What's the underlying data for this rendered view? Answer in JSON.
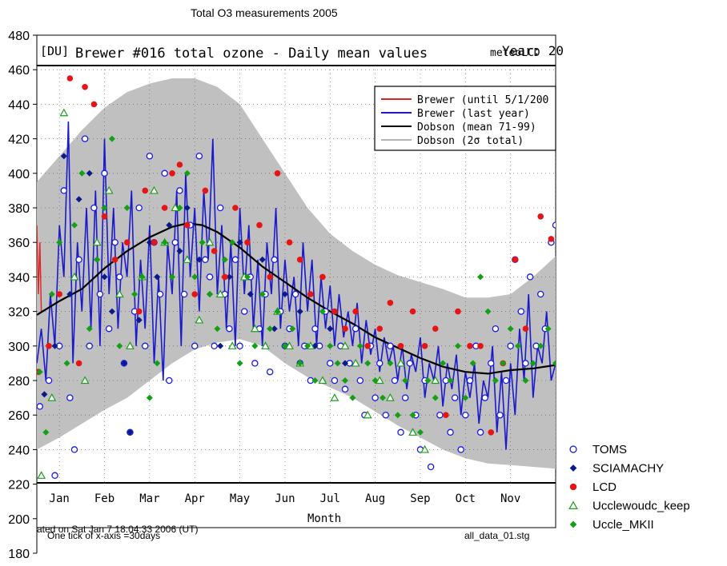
{
  "chart_data": {
    "type": "scatter",
    "title": "Total O3 measurements 2005",
    "y_axis": {
      "ticks": [
        "480",
        "460",
        "440",
        "420",
        "400",
        "380",
        "360",
        "340",
        "320",
        "300",
        "280",
        "260",
        "240",
        "220",
        "200",
        "180"
      ],
      "ylim": [
        180,
        480
      ]
    },
    "inner_plot": {
      "unit_label": "[DU]",
      "title": "Brewer #016 total ozone - Daily mean values",
      "year_label": "Year: 20",
      "overlap_label": "meteoLCD",
      "xlabel": "Month",
      "months": [
        "Jan",
        "Feb",
        "Mar",
        "Apr",
        "May",
        "Jun",
        "Jul",
        "Aug",
        "Sep",
        "Oct",
        "Nov"
      ],
      "timestamp_text": "ated on Sat Jan  7 18:04:33 2006 (UT)",
      "legend": [
        {
          "label": "Brewer (until 5/1/200",
          "color": "#dd2222"
        },
        {
          "label": "Brewer (last year)",
          "color": "#1a1acc"
        },
        {
          "label": "Dobson (mean 71-99)",
          "color": "#000000"
        },
        {
          "label": "Dobson (2σ total)",
          "color": "#b4b4b4"
        }
      ]
    },
    "footnote_left": "One tick of x-axis =30days",
    "footnote_right": "all_data_01.stg",
    "legend": [
      {
        "name": "TOMS",
        "marker": "open-circle",
        "color": "#1a1ae6"
      },
      {
        "name": "SCIAMACHY",
        "marker": "diamond",
        "color": "#0a1a8c"
      },
      {
        "name": "LCD",
        "marker": "filled-circle",
        "color": "#e61414"
      },
      {
        "name": "Ucclewoudc_keep",
        "marker": "open-triangle",
        "color": "#1aa01a"
      },
      {
        "name": "Uccle_MKII",
        "marker": "diamond",
        "color": "#14a014"
      }
    ],
    "dobson_mean": {
      "x": [
        0,
        15,
        30,
        45,
        60,
        75,
        90,
        100,
        110,
        120,
        135,
        150,
        165,
        180,
        195,
        210,
        225,
        240,
        255,
        270,
        285,
        300,
        315,
        330,
        345
      ],
      "y": [
        318,
        326,
        333,
        345,
        355,
        363,
        369,
        371,
        370,
        366,
        357,
        346,
        337,
        328,
        320,
        313,
        305,
        299,
        293,
        288,
        285,
        284,
        286,
        287,
        289
      ]
    },
    "dobson_band_upper": {
      "x": [
        0,
        15,
        30,
        45,
        60,
        75,
        90,
        105,
        120,
        135,
        150,
        165,
        180,
        195,
        210,
        225,
        240,
        255,
        270,
        285,
        300,
        315,
        330,
        345
      ],
      "y": [
        395,
        410,
        425,
        438,
        447,
        452,
        455,
        455,
        450,
        440,
        420,
        400,
        380,
        365,
        355,
        347,
        341,
        337,
        333,
        328,
        328,
        330,
        340,
        352
      ]
    },
    "dobson_band_lower": {
      "x": [
        0,
        15,
        30,
        45,
        60,
        75,
        90,
        105,
        120,
        135,
        150,
        165,
        180,
        195,
        210,
        225,
        240,
        255,
        270,
        285,
        300,
        315,
        330,
        345
      ],
      "y": [
        240,
        247,
        255,
        263,
        270,
        280,
        290,
        298,
        302,
        304,
        300,
        290,
        282,
        276,
        270,
        262,
        254,
        247,
        240,
        235,
        232,
        231,
        230,
        229
      ]
    },
    "brewer_last_year": {
      "x": [
        0,
        3,
        6,
        9,
        12,
        15,
        18,
        21,
        24,
        27,
        30,
        33,
        36,
        39,
        42,
        45,
        48,
        51,
        54,
        57,
        60,
        63,
        66,
        69,
        72,
        75,
        78,
        81,
        84,
        87,
        90,
        93,
        96,
        99,
        102,
        105,
        108,
        111,
        114,
        117,
        120,
        123,
        126,
        129,
        132,
        135,
        138,
        141,
        144,
        147,
        150,
        153,
        156,
        159,
        162,
        165,
        168,
        171,
        174,
        177,
        180,
        183,
        186,
        189,
        192,
        195,
        198,
        201,
        204,
        207,
        210,
        213,
        216,
        219,
        222,
        225,
        228,
        231,
        234,
        237,
        240,
        243,
        246,
        249,
        252,
        255,
        258,
        261,
        264,
        267,
        270,
        273,
        276,
        279,
        282,
        285,
        288,
        291,
        294,
        297,
        300,
        303,
        306,
        309,
        312,
        315,
        318,
        321,
        324,
        327,
        330,
        333,
        336,
        339,
        342,
        345
      ],
      "y": [
        290,
        310,
        280,
        330,
        300,
        370,
        340,
        430,
        290,
        360,
        320,
        380,
        310,
        390,
        300,
        420,
        330,
        380,
        310,
        360,
        340,
        390,
        300,
        350,
        310,
        370,
        290,
        340,
        280,
        360,
        330,
        390,
        300,
        400,
        340,
        380,
        320,
        390,
        350,
        420,
        330,
        370,
        310,
        360,
        300,
        380,
        330,
        370,
        310,
        350,
        300,
        360,
        330,
        380,
        310,
        350,
        320,
        340,
        300,
        360,
        320,
        350,
        300,
        340,
        310,
        335,
        300,
        330,
        305,
        320,
        300,
        325,
        290,
        315,
        295,
        310,
        285,
        305,
        290,
        300,
        280,
        300,
        275,
        295,
        285,
        305,
        270,
        290,
        280,
        300,
        265,
        290,
        275,
        295,
        260,
        285,
        270,
        290,
        255,
        280,
        270,
        300,
        250,
        285,
        240,
        290,
        260,
        310,
        280,
        330,
        270,
        300,
        290,
        320,
        280,
        290
      ]
    },
    "brewer_old": {
      "x": [
        0,
        1,
        2,
        3
      ],
      "y": [
        370,
        330,
        360,
        320
      ]
    },
    "series": [
      {
        "name": "TOMS",
        "x": [
          2,
          5,
          8,
          12,
          15,
          18,
          22,
          25,
          28,
          32,
          35,
          38,
          42,
          45,
          48,
          52,
          55,
          58,
          62,
          65,
          68,
          72,
          75,
          78,
          82,
          85,
          88,
          92,
          95,
          98,
          102,
          105,
          108,
          112,
          115,
          118,
          122,
          125,
          128,
          132,
          135,
          138,
          142,
          145,
          148,
          152,
          155,
          158,
          162,
          165,
          168,
          172,
          175,
          178,
          182,
          185,
          188,
          192,
          195,
          198,
          202,
          205,
          208,
          212,
          215,
          218,
          222,
          225,
          228,
          232,
          235,
          238,
          242,
          245,
          248,
          252,
          255,
          258,
          262,
          265,
          268,
          272,
          275,
          278,
          282,
          285,
          288,
          292,
          295,
          298,
          302,
          305,
          308,
          312,
          315,
          318,
          322,
          325,
          328,
          332,
          335,
          338,
          342,
          345
        ],
        "y": [
          265,
          208,
          280,
          225,
          300,
          390,
          270,
          240,
          350,
          420,
          300,
          380,
          330,
          400,
          310,
          360,
          340,
          290,
          250,
          320,
          380,
          300,
          410,
          360,
          330,
          400,
          280,
          360,
          390,
          330,
          370,
          300,
          410,
          350,
          340,
          300,
          380,
          330,
          310,
          350,
          300,
          320,
          340,
          290,
          310,
          330,
          285,
          350,
          320,
          300,
          310,
          330,
          290,
          300,
          280,
          310,
          300,
          320,
          290,
          280,
          300,
          275,
          290,
          310,
          280,
          260,
          300,
          270,
          290,
          260,
          300,
          280,
          250,
          270,
          290,
          260,
          240,
          280,
          230,
          215,
          260,
          280,
          250,
          270,
          240,
          260,
          280,
          300,
          250,
          270,
          290,
          310,
          260,
          280,
          300,
          350,
          320,
          290,
          340,
          300,
          330,
          310,
          360,
          370
        ]
      },
      {
        "name": "SCIAMACHY",
        "x": [
          5,
          12,
          18,
          22,
          28,
          35,
          40,
          45,
          50,
          58,
          62,
          68,
          75,
          80,
          88,
          95,
          100,
          108,
          115,
          122,
          128,
          135,
          142,
          150,
          158,
          165,
          175,
          185,
          195,
          205
        ],
        "y": [
          272,
          300,
          410,
          330,
          385,
          400,
          350,
          340,
          320,
          290,
          250,
          315,
          360,
          340,
          370,
          355,
          380,
          350,
          330,
          300,
          340,
          360,
          330,
          350,
          310,
          330,
          320,
          300,
          310,
          290
        ]
      },
      {
        "name": "LCD",
        "x": [
          1,
          8,
          15,
          22,
          28,
          32,
          38,
          45,
          52,
          60,
          68,
          72,
          78,
          85,
          90,
          95,
          100,
          105,
          112,
          118,
          125,
          132,
          140,
          148,
          155,
          160,
          168,
          175,
          182,
          190,
          198,
          205,
          212,
          220,
          228,
          235,
          242,
          250,
          258,
          265,
          272,
          280,
          288,
          295,
          302,
          310,
          318,
          325,
          335,
          342
        ],
        "y": [
          285,
          300,
          330,
          455,
          290,
          450,
          440,
          375,
          350,
          360,
          320,
          390,
          360,
          380,
          400,
          405,
          370,
          330,
          390,
          355,
          340,
          380,
          360,
          370,
          340,
          400,
          360,
          350,
          330,
          340,
          320,
          310,
          320,
          300,
          310,
          325,
          300,
          320,
          300,
          310,
          260,
          320,
          300,
          300,
          250,
          290,
          350,
          310,
          375,
          362
        ]
      },
      {
        "name": "Ucclewoudc_keep",
        "x": [
          3,
          10,
          18,
          25,
          32,
          40,
          48,
          55,
          62,
          70,
          78,
          85,
          92,
          100,
          108,
          115,
          122,
          130,
          138,
          145,
          152,
          160,
          168,
          175,
          182,
          190,
          198,
          205,
          212,
          220,
          228,
          235,
          242,
          250,
          258,
          265
        ],
        "y": [
          225,
          270,
          435,
          340,
          280,
          360,
          390,
          330,
          300,
          340,
          390,
          360,
          380,
          350,
          315,
          360,
          330,
          300,
          340,
          310,
          300,
          320,
          300,
          290,
          300,
          280,
          270,
          300,
          290,
          260,
          280,
          270,
          290,
          250,
          240,
          280
        ]
      },
      {
        "name": "Uccle_MKII",
        "x": [
          2,
          6,
          10,
          15,
          20,
          25,
          30,
          35,
          40,
          45,
          50,
          55,
          60,
          65,
          70,
          75,
          80,
          85,
          90,
          95,
          100,
          105,
          110,
          115,
          120,
          125,
          130,
          135,
          140,
          145,
          150,
          155,
          160,
          165,
          170,
          175,
          180,
          185,
          190,
          195,
          200,
          205,
          210,
          215,
          220,
          225,
          230,
          235,
          240,
          245,
          250,
          255,
          260,
          265,
          270,
          275,
          280,
          285,
          290,
          295,
          300,
          305,
          310,
          315,
          320,
          325,
          330,
          335,
          340,
          345
        ],
        "y": [
          285,
          250,
          330,
          360,
          290,
          370,
          400,
          310,
          350,
          380,
          420,
          300,
          380,
          330,
          340,
          270,
          290,
          360,
          340,
          380,
          400,
          340,
          360,
          330,
          310,
          350,
          360,
          290,
          340,
          300,
          330,
          310,
          320,
          300,
          310,
          290,
          300,
          280,
          320,
          300,
          290,
          280,
          270,
          300,
          290,
          280,
          270,
          290,
          260,
          280,
          260,
          250,
          280,
          270,
          290,
          280,
          300,
          270,
          290,
          340,
          320,
          280,
          290,
          310,
          300,
          280,
          290,
          300,
          310,
          290
        ]
      }
    ]
  }
}
